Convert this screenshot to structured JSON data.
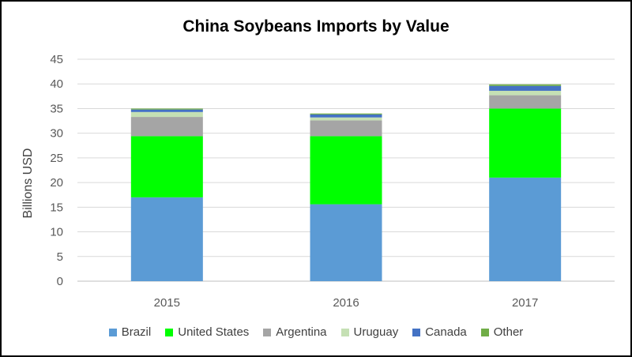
{
  "chart_data": {
    "type": "bar",
    "stacked": true,
    "title": "China Soybeans Imports by Value",
    "xlabel": "",
    "ylabel": "Billions USD",
    "categories": [
      "2015",
      "2016",
      "2017"
    ],
    "ylim": [
      0,
      45
    ],
    "yticks": [
      0,
      5,
      10,
      15,
      20,
      25,
      30,
      35,
      40,
      45
    ],
    "grid": true,
    "legend_position": "bottom",
    "series": [
      {
        "name": "Brazil",
        "color": "#5b9bd5",
        "values": [
          17.0,
          15.6,
          21.0
        ]
      },
      {
        "name": "United States",
        "color": "#00ff00",
        "values": [
          12.4,
          13.8,
          14.0
        ]
      },
      {
        "name": "Argentina",
        "color": "#a5a5a5",
        "values": [
          3.9,
          3.2,
          2.7
        ]
      },
      {
        "name": "Uruguay",
        "color": "#c5e0b4",
        "values": [
          1.0,
          0.6,
          0.9
        ]
      },
      {
        "name": "Canada",
        "color": "#4472c4",
        "values": [
          0.5,
          0.6,
          1.0
        ]
      },
      {
        "name": "Other",
        "color": "#70ad47",
        "values": [
          0.2,
          0.2,
          0.3
        ]
      }
    ]
  }
}
